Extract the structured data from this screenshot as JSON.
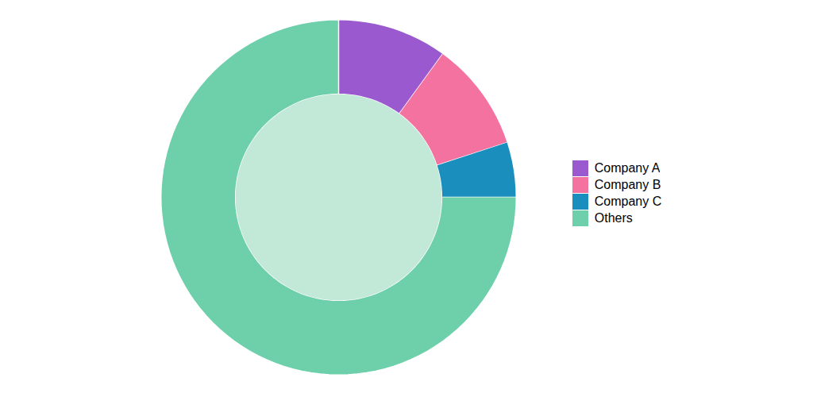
{
  "chart_data": {
    "type": "donut",
    "categories": [
      "Company A",
      "Company B",
      "Company C",
      "Others"
    ],
    "values": [
      10,
      10,
      5,
      75
    ],
    "colors": [
      "#9b59d0",
      "#f472a0",
      "#1a8fbe",
      "#6ecfab"
    ],
    "legend": "right"
  }
}
